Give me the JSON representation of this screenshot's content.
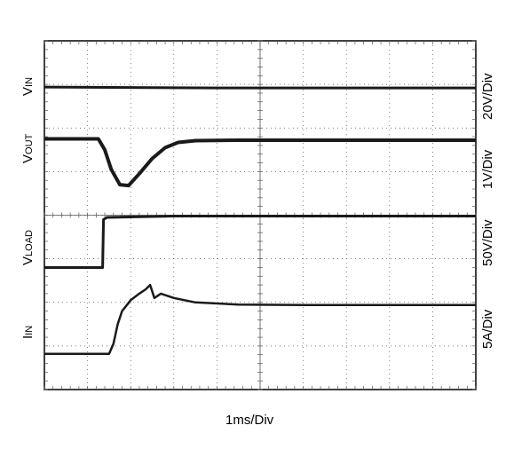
{
  "chart_data": {
    "type": "line",
    "title": "",
    "xlabel": "1ms/Div",
    "grid": true,
    "x_divisions": 10,
    "y_divisions": 8,
    "time_per_div_ms": 1,
    "channels": [
      {
        "name": "VIN",
        "label_main": "V",
        "label_sub": "IN",
        "scale": "20V/Div",
        "ref_level_div": 6.9,
        "points": [
          [
            0,
            6.94
          ],
          [
            2,
            6.93
          ],
          [
            4,
            6.92
          ],
          [
            6,
            6.92
          ],
          [
            8,
            6.92
          ],
          [
            10,
            6.92
          ]
        ]
      },
      {
        "name": "VOUT",
        "label_main": "V",
        "label_sub": "OUT",
        "scale": "1V/Div",
        "ref_level_div": 5.7,
        "points": [
          [
            0,
            5.75
          ],
          [
            1.25,
            5.75
          ],
          [
            1.4,
            5.5
          ],
          [
            1.55,
            5.05
          ],
          [
            1.75,
            4.7
          ],
          [
            1.95,
            4.68
          ],
          [
            2.2,
            4.95
          ],
          [
            2.5,
            5.3
          ],
          [
            2.8,
            5.55
          ],
          [
            3.1,
            5.67
          ],
          [
            3.5,
            5.71
          ],
          [
            4.5,
            5.72
          ],
          [
            6,
            5.72
          ],
          [
            8,
            5.72
          ],
          [
            10,
            5.72
          ]
        ]
      },
      {
        "name": "VLOAD",
        "label_main": "V",
        "label_sub": "LOAD",
        "scale": "50V/Div",
        "ref_level_div": 2.8,
        "points": [
          [
            0,
            2.8
          ],
          [
            1.35,
            2.8
          ],
          [
            1.37,
            3.9
          ],
          [
            1.45,
            3.95
          ],
          [
            3,
            3.98
          ],
          [
            6,
            3.98
          ],
          [
            8,
            3.98
          ],
          [
            10,
            3.98
          ]
        ]
      },
      {
        "name": "IIN",
        "label_main": "I",
        "label_sub": "IN",
        "scale": "5A/Div",
        "ref_level_div": 0.8,
        "points": [
          [
            0,
            0.82
          ],
          [
            1.5,
            0.82
          ],
          [
            1.6,
            1.05
          ],
          [
            1.7,
            1.5
          ],
          [
            1.8,
            1.8
          ],
          [
            2.0,
            2.05
          ],
          [
            2.2,
            2.2
          ],
          [
            2.35,
            2.3
          ],
          [
            2.45,
            2.4
          ],
          [
            2.55,
            2.1
          ],
          [
            2.7,
            2.2
          ],
          [
            3,
            2.1
          ],
          [
            3.5,
            2.0
          ],
          [
            4.5,
            1.95
          ],
          [
            6,
            1.94
          ],
          [
            8,
            1.94
          ],
          [
            10,
            1.94
          ]
        ]
      }
    ]
  }
}
